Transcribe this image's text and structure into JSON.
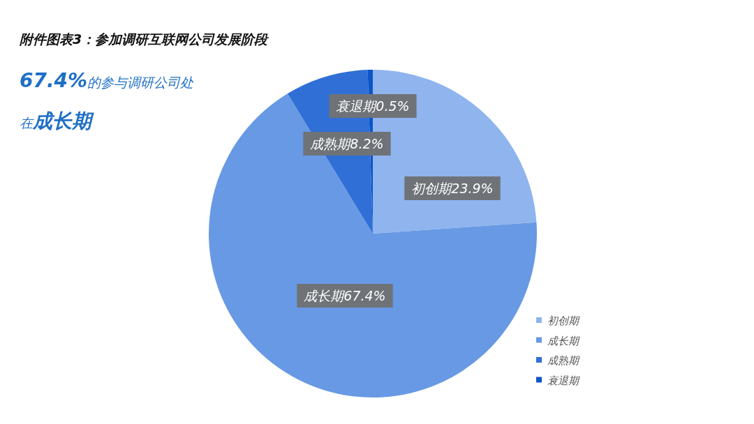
{
  "chart_data": {
    "type": "pie",
    "title": "附件图表3：参加调研互联网公司发展阶段",
    "subtitle": "**67.4%**的参与调研公司处在**成长期**",
    "categories": [
      "初创期",
      "成长期",
      "成熟期",
      "衰退期"
    ],
    "values": [
      23.9,
      67.4,
      8.2,
      0.5
    ],
    "colors": [
      "#8fb4ee",
      "#6899e4",
      "#2f6fd6",
      "#0c55c8"
    ],
    "value_labels": [
      "初创期23.9%",
      "成长期67.4%",
      "成熟期8.2%",
      "衰退期0.5%"
    ],
    "legend": "bottom right"
  }
}
